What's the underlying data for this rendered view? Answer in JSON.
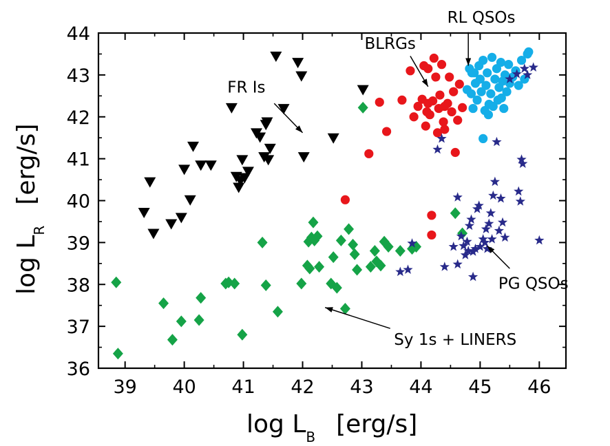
{
  "chart_data": {
    "type": "scatter",
    "title": "",
    "xlabel": {
      "main": "log L",
      "sub": "B",
      "unit": "[erg/s]"
    },
    "ylabel": {
      "main": "log L",
      "sub": "R",
      "unit": "[erg/s]"
    },
    "xlim": [
      38.55,
      46.45
    ],
    "ylim": [
      36,
      44
    ],
    "xticks": [
      39,
      40,
      41,
      42,
      43,
      44,
      45,
      46
    ],
    "yticks": [
      36,
      37,
      38,
      39,
      40,
      41,
      42,
      43,
      44
    ],
    "grid": false,
    "legend": "none",
    "series": [
      {
        "marker": "triangle-down",
        "color": "#000000",
        "points": [
          [
            39.32,
            39.72
          ],
          [
            39.42,
            40.45
          ],
          [
            39.48,
            39.22
          ],
          [
            39.78,
            39.45
          ],
          [
            39.95,
            39.6
          ],
          [
            40.0,
            40.75
          ],
          [
            40.1,
            40.02
          ],
          [
            40.15,
            41.3
          ],
          [
            40.28,
            40.85
          ],
          [
            40.45,
            40.85
          ],
          [
            40.8,
            42.22
          ],
          [
            40.88,
            40.58
          ],
          [
            40.92,
            40.32
          ],
          [
            40.95,
            40.48
          ],
          [
            40.98,
            40.98
          ],
          [
            41.02,
            40.55
          ],
          [
            41.08,
            40.7
          ],
          [
            41.22,
            41.62
          ],
          [
            41.28,
            41.52
          ],
          [
            41.35,
            41.05
          ],
          [
            41.38,
            41.82
          ],
          [
            41.4,
            41.88
          ],
          [
            41.42,
            40.98
          ],
          [
            41.45,
            41.25
          ],
          [
            41.55,
            43.45
          ],
          [
            41.68,
            42.2
          ],
          [
            41.92,
            43.3
          ],
          [
            41.98,
            42.98
          ],
          [
            42.02,
            41.05
          ],
          [
            42.52,
            41.5
          ],
          [
            43.02,
            42.65
          ]
        ]
      },
      {
        "marker": "circle",
        "color": "#e8161b",
        "points": [
          [
            42.72,
            40.02
          ],
          [
            43.12,
            41.12
          ],
          [
            43.3,
            42.35
          ],
          [
            43.42,
            41.65
          ],
          [
            43.68,
            42.4
          ],
          [
            43.82,
            43.1
          ],
          [
            43.88,
            42.0
          ],
          [
            43.95,
            42.25
          ],
          [
            44.02,
            42.42
          ],
          [
            44.05,
            43.22
          ],
          [
            44.08,
            41.78
          ],
          [
            44.1,
            42.12
          ],
          [
            44.12,
            42.32
          ],
          [
            44.15,
            42.05
          ],
          [
            44.18,
            39.65
          ],
          [
            44.18,
            39.18
          ],
          [
            44.2,
            42.38
          ],
          [
            44.22,
            43.4
          ],
          [
            44.25,
            42.95
          ],
          [
            44.28,
            41.62
          ],
          [
            44.3,
            42.2
          ],
          [
            44.32,
            42.52
          ],
          [
            44.35,
            43.25
          ],
          [
            44.38,
            41.88
          ],
          [
            44.4,
            41.7
          ],
          [
            44.45,
            42.32
          ],
          [
            44.48,
            42.95
          ],
          [
            44.52,
            42.12
          ],
          [
            44.55,
            42.6
          ],
          [
            44.58,
            41.15
          ],
          [
            44.62,
            41.92
          ],
          [
            44.65,
            42.78
          ],
          [
            44.7,
            42.22
          ],
          [
            44.4,
            42.25
          ],
          [
            44.12,
            43.15
          ]
        ]
      },
      {
        "marker": "circle",
        "color": "#15aee8",
        "points": [
          [
            44.78,
            42.65
          ],
          [
            44.82,
            43.15
          ],
          [
            44.85,
            42.55
          ],
          [
            44.88,
            42.2
          ],
          [
            44.9,
            43.05
          ],
          [
            44.92,
            42.8
          ],
          [
            44.95,
            42.4
          ],
          [
            44.98,
            43.22
          ],
          [
            45.0,
            42.9
          ],
          [
            45.02,
            42.6
          ],
          [
            45.05,
            43.35
          ],
          [
            45.08,
            42.15
          ],
          [
            45.1,
            42.75
          ],
          [
            45.12,
            43.05
          ],
          [
            45.15,
            42.3
          ],
          [
            45.18,
            42.55
          ],
          [
            45.2,
            43.42
          ],
          [
            45.22,
            42.25
          ],
          [
            45.25,
            42.9
          ],
          [
            45.28,
            43.15
          ],
          [
            45.3,
            42.4
          ],
          [
            45.32,
            42.7
          ],
          [
            45.35,
            43.3
          ],
          [
            45.38,
            42.85
          ],
          [
            45.4,
            42.2
          ],
          [
            45.42,
            43.0
          ],
          [
            45.45,
            42.6
          ],
          [
            45.48,
            43.25
          ],
          [
            45.5,
            42.8
          ],
          [
            45.55,
            42.95
          ],
          [
            45.6,
            43.1
          ],
          [
            45.65,
            42.75
          ],
          [
            45.7,
            43.35
          ],
          [
            45.75,
            42.9
          ],
          [
            45.8,
            43.5
          ],
          [
            45.82,
            43.55
          ],
          [
            45.05,
            41.48
          ],
          [
            44.86,
            43.05
          ],
          [
            45.14,
            42.05
          ],
          [
            45.36,
            42.45
          ]
        ]
      },
      {
        "marker": "diamond",
        "color": "#15a347",
        "points": [
          [
            38.85,
            38.05
          ],
          [
            38.88,
            36.35
          ],
          [
            39.65,
            37.55
          ],
          [
            39.8,
            36.68
          ],
          [
            39.95,
            37.12
          ],
          [
            40.25,
            37.15
          ],
          [
            40.28,
            37.68
          ],
          [
            40.7,
            38.02
          ],
          [
            40.75,
            38.05
          ],
          [
            40.85,
            38.02
          ],
          [
            40.98,
            36.8
          ],
          [
            41.32,
            39.0
          ],
          [
            41.38,
            37.98
          ],
          [
            41.58,
            37.35
          ],
          [
            41.98,
            38.02
          ],
          [
            42.08,
            38.45
          ],
          [
            42.1,
            39.02
          ],
          [
            42.12,
            38.38
          ],
          [
            42.15,
            39.12
          ],
          [
            42.18,
            39.48
          ],
          [
            42.2,
            39.05
          ],
          [
            42.25,
            39.15
          ],
          [
            42.28,
            38.42
          ],
          [
            42.48,
            38.02
          ],
          [
            42.52,
            38.65
          ],
          [
            42.58,
            37.92
          ],
          [
            42.65,
            39.05
          ],
          [
            42.72,
            37.42
          ],
          [
            42.78,
            39.32
          ],
          [
            42.85,
            38.95
          ],
          [
            42.88,
            38.72
          ],
          [
            42.92,
            38.35
          ],
          [
            43.02,
            42.22
          ],
          [
            43.15,
            38.42
          ],
          [
            43.22,
            38.8
          ],
          [
            43.25,
            38.55
          ],
          [
            43.32,
            38.45
          ],
          [
            43.38,
            39.02
          ],
          [
            43.45,
            38.9
          ],
          [
            43.65,
            38.8
          ],
          [
            43.85,
            38.85
          ],
          [
            43.92,
            38.9
          ],
          [
            44.58,
            39.7
          ],
          [
            44.7,
            39.22
          ]
        ]
      },
      {
        "marker": "star",
        "color": "#282a8a",
        "points": [
          [
            43.65,
            38.3
          ],
          [
            43.78,
            38.35
          ],
          [
            43.85,
            38.98
          ],
          [
            44.28,
            41.22
          ],
          [
            44.35,
            41.48
          ],
          [
            44.4,
            38.42
          ],
          [
            44.55,
            38.9
          ],
          [
            44.62,
            38.48
          ],
          [
            44.62,
            40.08
          ],
          [
            44.68,
            39.15
          ],
          [
            44.72,
            38.92
          ],
          [
            44.75,
            38.7
          ],
          [
            44.78,
            39.02
          ],
          [
            44.8,
            38.8
          ],
          [
            44.82,
            39.4
          ],
          [
            44.85,
            39.55
          ],
          [
            44.88,
            38.78
          ],
          [
            44.88,
            38.18
          ],
          [
            44.92,
            38.85
          ],
          [
            44.95,
            39.8
          ],
          [
            44.98,
            39.88
          ],
          [
            45.0,
            38.9
          ],
          [
            45.05,
            39.08
          ],
          [
            45.08,
            39.0
          ],
          [
            45.1,
            39.32
          ],
          [
            45.12,
            38.85
          ],
          [
            45.15,
            39.45
          ],
          [
            45.18,
            39.7
          ],
          [
            45.2,
            39.08
          ],
          [
            45.22,
            40.12
          ],
          [
            45.25,
            40.45
          ],
          [
            45.28,
            41.4
          ],
          [
            45.32,
            39.28
          ],
          [
            45.35,
            40.05
          ],
          [
            45.38,
            39.48
          ],
          [
            45.42,
            39.12
          ],
          [
            45.5,
            42.9
          ],
          [
            45.62,
            43.02
          ],
          [
            45.65,
            40.22
          ],
          [
            45.68,
            39.98
          ],
          [
            45.7,
            40.98
          ],
          [
            45.72,
            40.88
          ],
          [
            45.75,
            43.15
          ],
          [
            45.8,
            43.0
          ],
          [
            45.9,
            43.18
          ],
          [
            46.0,
            39.05
          ]
        ]
      }
    ],
    "annotations": [
      {
        "text": "FR Is",
        "text_at": [
          41.05,
          42.58
        ],
        "arrow_from": [
          41.52,
          42.32
        ],
        "arrow_to": [
          42.0,
          41.62
        ]
      },
      {
        "text": "BLRGs",
        "text_at": [
          43.48,
          43.62
        ],
        "arrow_from": [
          43.82,
          43.45
        ],
        "arrow_to": [
          44.12,
          42.72
        ]
      },
      {
        "text": "RL QSOs",
        "text_at": [
          45.02,
          44.25
        ],
        "arrow_from": [
          44.8,
          44.02
        ],
        "arrow_to": [
          44.8,
          43.22
        ]
      },
      {
        "text": "PG QSOs",
        "text_at": [
          45.9,
          37.9
        ],
        "arrow_from": [
          45.5,
          38.38
        ],
        "arrow_to": [
          45.12,
          38.92
        ]
      },
      {
        "text": "Sy 1s + LINERS",
        "text_at": [
          44.58,
          36.56
        ],
        "arrow_from": [
          43.48,
          36.95
        ],
        "arrow_to": [
          42.38,
          37.45
        ]
      }
    ]
  }
}
